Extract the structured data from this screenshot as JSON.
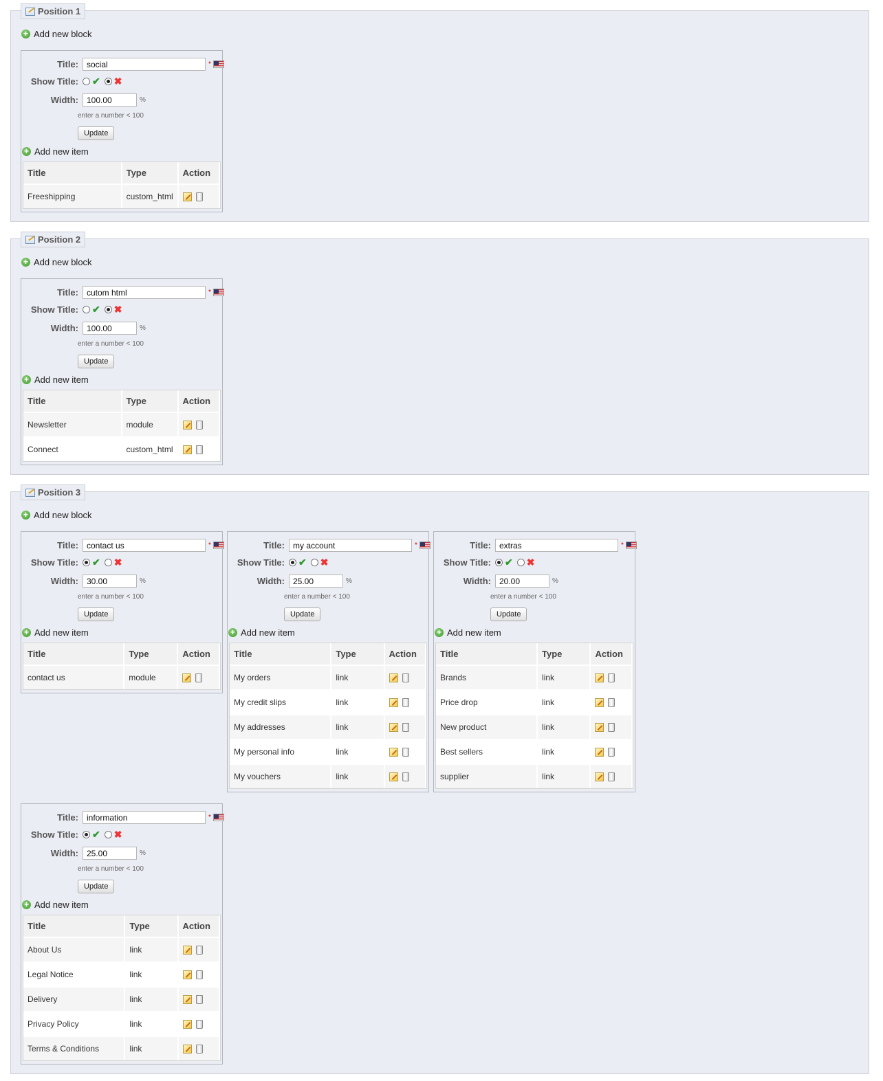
{
  "add_block_label": "Add new block",
  "add_item_label": "Add new item",
  "labels": {
    "title": "Title:",
    "show_title": "Show Title:",
    "width": "Width:",
    "percent": "%",
    "hint": "enter a number < 100",
    "update": "Update",
    "required": "*"
  },
  "table_headers": {
    "title": "Title",
    "type": "Type",
    "action": "Action"
  },
  "positions": [
    {
      "legend": "Position 1",
      "blocks": [
        {
          "title": "social",
          "show_title": false,
          "width": "100.00",
          "items": [
            {
              "title": "Freeshipping",
              "type": "custom_html"
            }
          ]
        }
      ]
    },
    {
      "legend": "Position 2",
      "blocks": [
        {
          "title": "cutom html",
          "show_title": false,
          "width": "100.00",
          "items": [
            {
              "title": "Newsletter",
              "type": "module"
            },
            {
              "title": "Connect",
              "type": "custom_html"
            }
          ]
        }
      ]
    },
    {
      "legend": "Position 3",
      "blocks": [
        {
          "title": "contact us",
          "show_title": true,
          "width": "30.00",
          "items": [
            {
              "title": "contact us",
              "type": "module"
            }
          ]
        },
        {
          "title": "my account",
          "show_title": true,
          "width": "25.00",
          "items": [
            {
              "title": "My orders",
              "type": "link"
            },
            {
              "title": "My credit slips",
              "type": "link"
            },
            {
              "title": "My addresses",
              "type": "link"
            },
            {
              "title": "My personal info",
              "type": "link"
            },
            {
              "title": "My vouchers",
              "type": "link"
            }
          ]
        },
        {
          "title": "extras",
          "show_title": true,
          "width": "20.00",
          "items": [
            {
              "title": "Brands",
              "type": "link"
            },
            {
              "title": "Price drop",
              "type": "link"
            },
            {
              "title": "New product",
              "type": "link"
            },
            {
              "title": "Best sellers",
              "type": "link"
            },
            {
              "title": "supplier",
              "type": "link"
            }
          ]
        },
        {
          "title": "information",
          "show_title": true,
          "width": "25.00",
          "items": [
            {
              "title": "About Us",
              "type": "link"
            },
            {
              "title": "Legal Notice",
              "type": "link"
            },
            {
              "title": "Delivery",
              "type": "link"
            },
            {
              "title": "Privacy Policy",
              "type": "link"
            },
            {
              "title": "Terms & Conditions",
              "type": "link"
            }
          ]
        }
      ]
    }
  ]
}
